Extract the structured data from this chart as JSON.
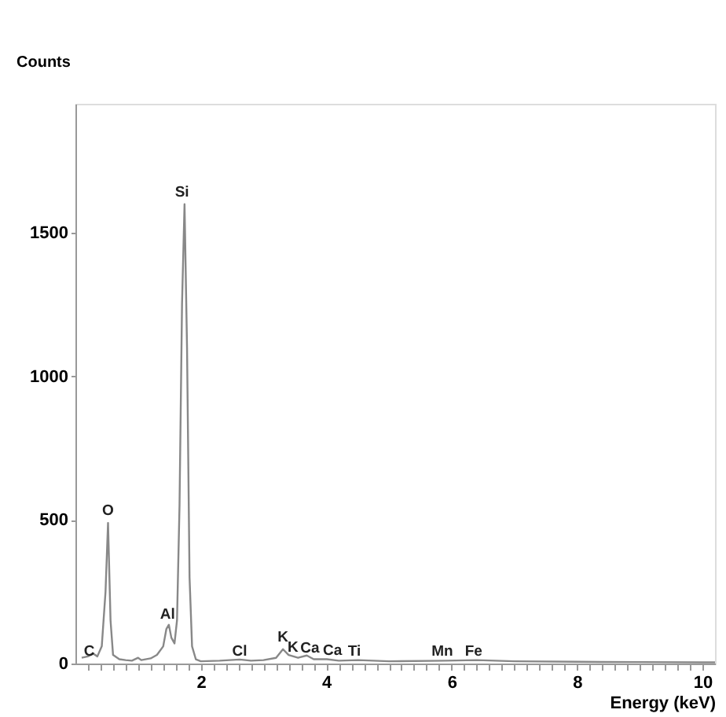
{
  "chart_data": {
    "type": "line",
    "xlabel": "Energy (keV)",
    "ylabel": "Counts",
    "x": [
      0.1,
      0.2,
      0.28,
      0.35,
      0.42,
      0.48,
      0.52,
      0.56,
      0.6,
      0.7,
      0.8,
      0.9,
      1.0,
      1.05,
      1.2,
      1.3,
      1.4,
      1.45,
      1.49,
      1.53,
      1.58,
      1.62,
      1.66,
      1.7,
      1.74,
      1.78,
      1.82,
      1.86,
      1.92,
      2.0,
      2.3,
      2.62,
      2.8,
      3.0,
      3.2,
      3.31,
      3.4,
      3.55,
      3.69,
      3.8,
      4.01,
      4.2,
      4.51,
      5.0,
      5.9,
      6.4,
      7.0,
      8.0,
      9.0,
      10.0,
      10.2
    ],
    "series": [
      {
        "color": "#888888",
        "values": [
          20,
          25,
          35,
          25,
          60,
          250,
          490,
          150,
          30,
          15,
          12,
          10,
          20,
          12,
          18,
          30,
          60,
          120,
          135,
          90,
          70,
          150,
          550,
          1250,
          1600,
          1100,
          300,
          60,
          15,
          8,
          10,
          14,
          10,
          12,
          20,
          50,
          30,
          20,
          28,
          15,
          15,
          10,
          12,
          8,
          10,
          12,
          8,
          6,
          5,
          4,
          4
        ]
      }
    ],
    "xlim": [
      0,
      10.2
    ],
    "ylim": [
      0,
      1950
    ],
    "xticks": [
      {
        "value": 0.2,
        "label": null
      },
      {
        "value": 0.4,
        "label": null
      },
      {
        "value": 0.6,
        "label": null
      },
      {
        "value": 0.8,
        "label": null
      },
      {
        "value": 1,
        "label": null
      },
      {
        "value": 1.2,
        "label": null
      },
      {
        "value": 1.4,
        "label": null
      },
      {
        "value": 1.6,
        "label": null
      },
      {
        "value": 1.8,
        "label": null
      },
      2,
      {
        "value": 2.2,
        "label": null
      },
      {
        "value": 2.4,
        "label": null
      },
      {
        "value": 2.6,
        "label": null
      },
      {
        "value": 2.8,
        "label": null
      },
      {
        "value": 3,
        "label": null
      },
      {
        "value": 3.2,
        "label": null
      },
      {
        "value": 3.4,
        "label": null
      },
      {
        "value": 3.6,
        "label": null
      },
      {
        "value": 3.8,
        "label": null
      },
      4,
      {
        "value": 4.2,
        "label": null
      },
      {
        "value": 4.4,
        "label": null
      },
      {
        "value": 4.6,
        "label": null
      },
      {
        "value": 4.8,
        "label": null
      },
      {
        "value": 5,
        "label": null
      },
      {
        "value": 5.2,
        "label": null
      },
      {
        "value": 5.4,
        "label": null
      },
      {
        "value": 5.6,
        "label": null
      },
      {
        "value": 5.8,
        "label": null
      },
      6,
      {
        "value": 6.2,
        "label": null
      },
      {
        "value": 6.4,
        "label": null
      },
      {
        "value": 6.6,
        "label": null
      },
      {
        "value": 6.8,
        "label": null
      },
      {
        "value": 7,
        "label": null
      },
      {
        "value": 7.2,
        "label": null
      },
      {
        "value": 7.4,
        "label": null
      },
      {
        "value": 7.6,
        "label": null
      },
      {
        "value": 7.8,
        "label": null
      },
      8,
      {
        "value": 8.2,
        "label": null
      },
      {
        "value": 8.4,
        "label": null
      },
      {
        "value": 8.6,
        "label": null
      },
      {
        "value": 8.8,
        "label": null
      },
      {
        "value": 9,
        "label": null
      },
      {
        "value": 9.2,
        "label": null
      },
      {
        "value": 9.4,
        "label": null
      },
      {
        "value": 9.6,
        "label": null
      },
      {
        "value": 9.8,
        "label": null
      },
      10
    ],
    "yticks": [
      0,
      500,
      1000,
      1500
    ],
    "grid": false,
    "marker": "none",
    "line_style": "solid",
    "annotations": [
      {
        "text": "Si",
        "x": 1.7,
        "y": 1610
      },
      {
        "text": "O",
        "x": 0.52,
        "y": 500
      },
      {
        "text": "Al",
        "x": 1.47,
        "y": 140
      },
      {
        "text": "C",
        "x": 0.22,
        "y": 10
      },
      {
        "text": "Cl",
        "x": 2.62,
        "y": 10
      },
      {
        "text": "K",
        "x": 3.31,
        "y": 60
      },
      {
        "text": "Ca",
        "x": 3.74,
        "y": 22
      },
      {
        "text": "K",
        "x": 3.47,
        "y": 25
      },
      {
        "text": "Ca",
        "x": 4.1,
        "y": 13
      },
      {
        "text": "Ti",
        "x": 4.45,
        "y": 12
      },
      {
        "text": "Mn",
        "x": 5.85,
        "y": 10
      },
      {
        "text": "Fe",
        "x": 6.35,
        "y": 10
      }
    ]
  }
}
